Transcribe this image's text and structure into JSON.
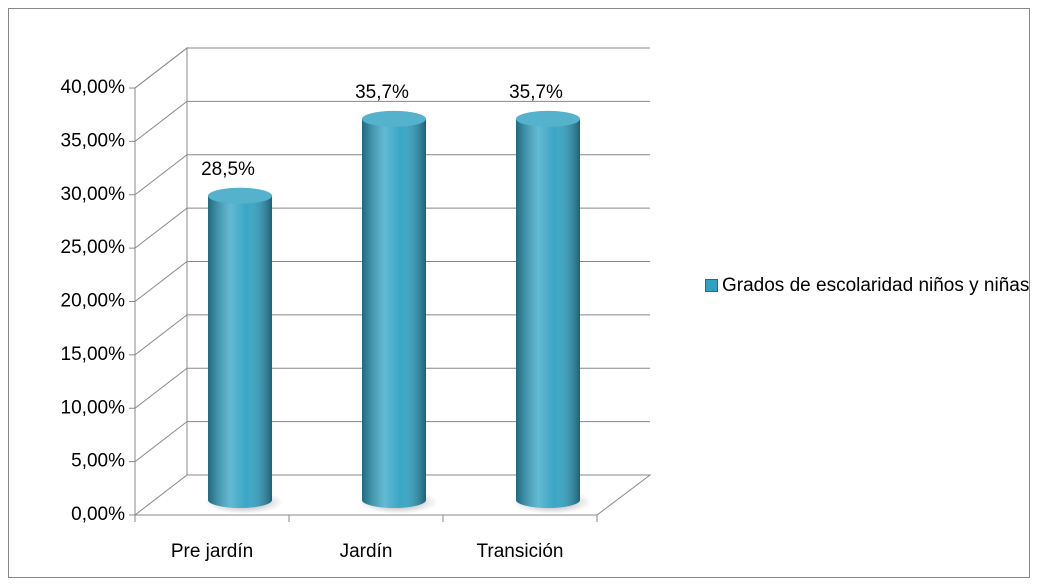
{
  "chart_data": {
    "type": "bar3d",
    "categories": [
      "Pre jardín",
      "Jardín",
      "Transición"
    ],
    "series": [
      {
        "name": "Grados de escolaridad niños y niñas",
        "color": "#2fa2c3",
        "values": [
          28.5,
          35.7,
          35.7
        ],
        "value_labels": [
          "28,5%",
          "35,7%",
          "35,7%"
        ]
      }
    ],
    "ylim": [
      0,
      40
    ],
    "yticks": [
      {
        "value": 0,
        "label": "0,00%"
      },
      {
        "value": 5,
        "label": "5,00%"
      },
      {
        "value": 10,
        "label": "10,00%"
      },
      {
        "value": 15,
        "label": "15,00%"
      },
      {
        "value": 20,
        "label": "20,00%"
      },
      {
        "value": 25,
        "label": "25,00%"
      },
      {
        "value": 30,
        "label": "30,00%"
      },
      {
        "value": 35,
        "label": "35,00%"
      },
      {
        "value": 40,
        "label": "40,00%"
      }
    ],
    "grid": true,
    "legend": "right"
  }
}
